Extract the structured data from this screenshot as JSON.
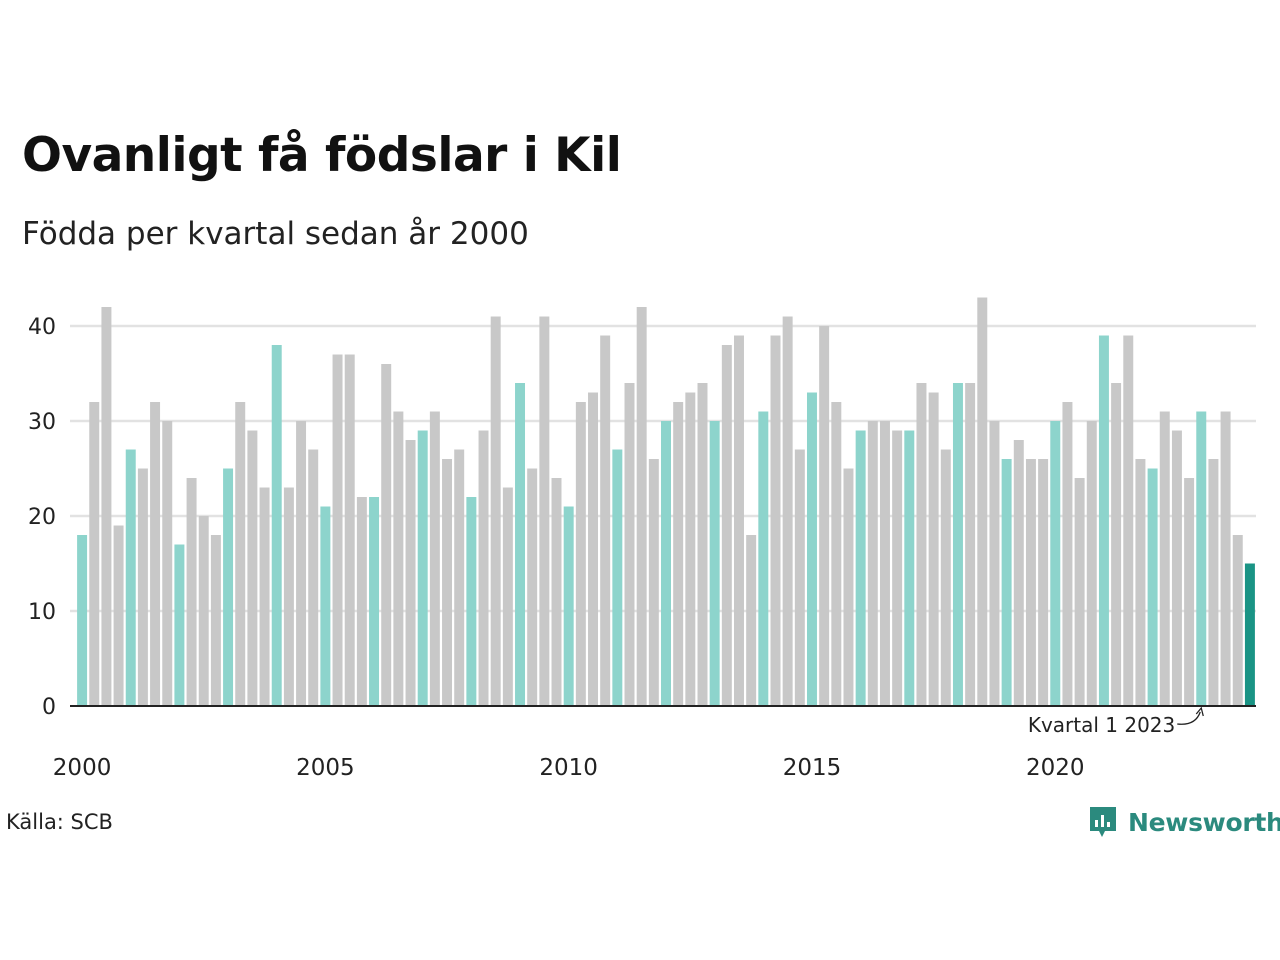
{
  "title": "Ovanligt få födslar i Kil",
  "subtitle": "Födda per kvartal sedan år 2000",
  "source": "Källa: SCB",
  "brand": "Newsworthy",
  "colors": {
    "bar_default": "#c8c8c8",
    "bar_q1": "#8dd4cc",
    "bar_latest": "#1a9485",
    "grid": "#e2e2e2",
    "axis": "#222222",
    "brand": "#2b8a7e"
  },
  "chart_data": {
    "type": "bar",
    "x_tick_labels": [
      "2000",
      "2005",
      "2010",
      "2015",
      "2020"
    ],
    "y_ticks": [
      0,
      10,
      20,
      30,
      40
    ],
    "ylim": [
      0,
      44
    ],
    "grid": true,
    "highlight_rule": "kvartal 1 highlighted",
    "annotation": "Kvartal 1 2023",
    "series": [
      {
        "values": [
          18,
          32,
          42,
          19,
          27,
          25,
          32,
          30,
          17,
          24,
          20,
          18,
          25,
          32,
          29,
          23,
          38,
          23,
          30,
          27,
          21,
          37,
          37,
          22,
          22,
          36,
          31,
          28,
          29,
          31,
          26,
          27,
          22,
          29,
          41,
          23,
          34,
          25,
          41,
          24,
          21,
          32,
          33,
          39,
          27,
          34,
          42,
          26,
          30,
          32,
          33,
          34,
          30,
          38,
          39,
          18,
          31,
          39,
          41,
          27,
          33,
          40,
          32,
          25,
          29,
          30,
          30,
          29,
          29,
          34,
          33,
          27,
          34,
          34,
          43,
          30,
          26,
          28,
          26,
          26,
          30,
          32,
          24,
          30,
          39,
          34,
          39,
          26,
          25,
          31,
          29,
          24,
          31,
          26,
          31,
          18,
          15
        ]
      }
    ]
  }
}
